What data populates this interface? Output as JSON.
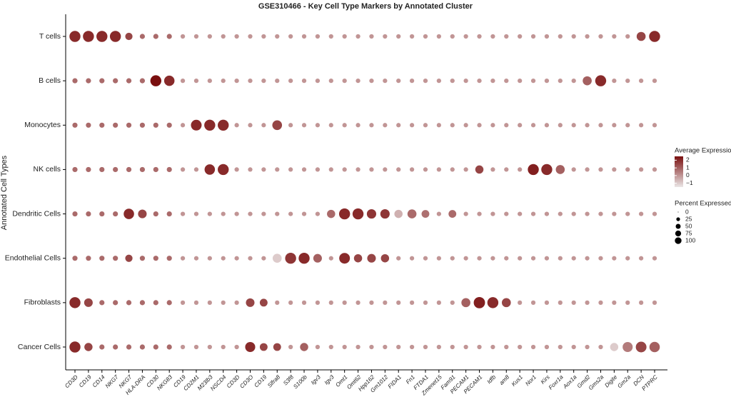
{
  "chart_data": {
    "type": "dot",
    "title": "GSE310466 - Key Cell Type Markers by Annotated Cluster",
    "y_label": "Annotated Cell Types",
    "x_categories": [
      "CD3D",
      "CD19",
      "CD14",
      "NKG7",
      "NKG7",
      "HLA-DRA",
      "CD30",
      "NKG83",
      "CD19",
      "CD2M1",
      "M23lb3",
      "NSCD4",
      "CD3D",
      "CD3O",
      "CD19",
      "Slfra8",
      "S3f8",
      "S100b",
      "Igv3",
      "Igv3",
      "Omt1",
      "Omt62",
      "Hpp162",
      "Gm1012",
      "FIDA1",
      "Fn1",
      "FTDA1",
      "Zmenet15",
      "Fam91",
      "PECAM1",
      "PECAM1",
      "Idfb",
      "am8",
      "Kus1",
      "Nor1",
      "Kirs",
      "Foxr1a",
      "Aox1a",
      "Gmd2",
      "Gms2a",
      "Digite",
      "Gm2a",
      "DCN",
      "PTPRC"
    ],
    "y_categories": [
      "T cells",
      "B cells",
      "Monocytes",
      "NK cells",
      "Dendritic Cells",
      "Endothelial Cells",
      "Fibroblasts",
      "Cancer Cells"
    ],
    "pct": [
      [
        80,
        80,
        80,
        80,
        30,
        12,
        12,
        12,
        8,
        8,
        8,
        8,
        8,
        8,
        8,
        8,
        8,
        8,
        8,
        8,
        8,
        8,
        8,
        8,
        8,
        8,
        8,
        8,
        8,
        8,
        8,
        8,
        8,
        8,
        8,
        8,
        8,
        8,
        8,
        8,
        8,
        8,
        50,
        80
      ],
      [
        12,
        12,
        12,
        12,
        12,
        12,
        80,
        70,
        8,
        8,
        8,
        8,
        8,
        8,
        8,
        8,
        8,
        8,
        8,
        8,
        8,
        8,
        8,
        8,
        8,
        8,
        8,
        8,
        8,
        8,
        8,
        8,
        8,
        8,
        8,
        8,
        8,
        8,
        50,
        80,
        8,
        8,
        8,
        8
      ],
      [
        12,
        12,
        12,
        12,
        12,
        12,
        12,
        12,
        8,
        75,
        80,
        80,
        8,
        8,
        8,
        60,
        8,
        8,
        8,
        8,
        8,
        8,
        8,
        8,
        8,
        8,
        8,
        8,
        8,
        8,
        8,
        8,
        8,
        8,
        8,
        8,
        8,
        8,
        8,
        8,
        8,
        8,
        8,
        8
      ],
      [
        12,
        12,
        12,
        12,
        12,
        12,
        12,
        12,
        8,
        8,
        70,
        80,
        8,
        8,
        8,
        8,
        8,
        8,
        8,
        8,
        8,
        8,
        8,
        8,
        8,
        8,
        8,
        8,
        8,
        8,
        40,
        8,
        8,
        8,
        80,
        80,
        50,
        8,
        8,
        8,
        8,
        8,
        8,
        8
      ],
      [
        12,
        12,
        12,
        12,
        70,
        45,
        12,
        12,
        8,
        8,
        8,
        8,
        8,
        8,
        8,
        8,
        8,
        8,
        8,
        40,
        80,
        80,
        55,
        55,
        40,
        50,
        35,
        8,
        35,
        8,
        8,
        8,
        8,
        8,
        8,
        8,
        8,
        8,
        8,
        8,
        8,
        8,
        8,
        8
      ],
      [
        12,
        12,
        12,
        12,
        30,
        12,
        12,
        12,
        8,
        8,
        8,
        8,
        8,
        8,
        8,
        50,
        80,
        80,
        45,
        8,
        75,
        40,
        45,
        40,
        8,
        8,
        8,
        8,
        8,
        8,
        8,
        8,
        8,
        8,
        8,
        8,
        8,
        8,
        8,
        8,
        8,
        8,
        8,
        8
      ],
      [
        80,
        45,
        12,
        12,
        12,
        12,
        12,
        12,
        8,
        8,
        8,
        8,
        8,
        45,
        35,
        8,
        8,
        8,
        8,
        8,
        8,
        8,
        8,
        8,
        8,
        8,
        8,
        8,
        8,
        50,
        85,
        80,
        50,
        8,
        8,
        8,
        8,
        8,
        8,
        8,
        8,
        8,
        8,
        8
      ],
      [
        80,
        40,
        12,
        12,
        12,
        12,
        12,
        12,
        8,
        8,
        8,
        8,
        8,
        65,
        35,
        35,
        8,
        40,
        8,
        8,
        8,
        8,
        8,
        8,
        8,
        8,
        8,
        8,
        8,
        8,
        8,
        8,
        8,
        8,
        8,
        8,
        8,
        8,
        8,
        8,
        40,
        65,
        75,
        70
      ]
    ],
    "expr": [
      [
        2,
        2,
        2,
        2,
        1.5,
        0.8,
        0.8,
        0.8,
        0,
        0,
        0,
        0,
        0,
        0,
        0,
        0,
        0,
        0,
        0,
        0,
        0,
        0,
        0,
        0,
        0,
        0,
        0,
        0,
        0,
        0,
        0,
        0,
        0,
        0,
        0,
        0,
        0,
        0,
        0,
        0,
        0,
        0,
        1.5,
        2
      ],
      [
        0.8,
        0.8,
        0.8,
        0.8,
        0.8,
        0.8,
        2.5,
        2,
        0,
        0,
        0,
        0,
        0,
        0,
        0,
        0,
        0,
        0,
        0,
        0,
        0,
        0,
        0,
        0,
        0,
        0,
        0,
        0,
        0,
        0,
        0,
        0,
        0,
        0,
        0,
        0,
        0,
        0,
        1,
        2,
        0,
        0,
        0,
        0
      ],
      [
        0.8,
        0.8,
        0.8,
        0.8,
        0.8,
        0.8,
        0.8,
        0.8,
        0,
        2,
        2,
        2,
        0,
        0,
        0,
        1.5,
        0,
        0,
        0,
        0,
        0,
        0,
        0,
        0,
        0,
        0,
        0,
        0,
        0,
        0,
        0,
        0,
        0,
        0,
        0,
        0,
        0,
        0,
        0,
        0,
        0,
        0,
        0,
        0
      ],
      [
        0.8,
        0.8,
        0.8,
        0.8,
        0.8,
        0.8,
        0.8,
        0.8,
        0,
        0,
        2,
        2,
        0,
        0,
        0,
        0,
        0,
        0,
        0,
        0,
        0,
        0,
        0,
        0,
        0,
        0,
        0,
        0,
        0,
        0,
        1.5,
        0,
        0,
        0,
        2.2,
        2,
        1,
        0,
        0,
        0,
        0,
        0,
        0,
        0
      ],
      [
        0.8,
        0.8,
        0.8,
        0.8,
        2,
        1.5,
        0.8,
        0.8,
        0,
        0,
        0,
        0,
        0,
        0,
        0,
        0,
        0,
        0,
        0,
        0.8,
        2,
        2,
        1.8,
        1.8,
        -0.5,
        0.8,
        0.7,
        0,
        0.8,
        0,
        0,
        0,
        0,
        0,
        0,
        0,
        0,
        0,
        0,
        0,
        0,
        0,
        0,
        0
      ],
      [
        0.8,
        0.8,
        0.8,
        0.8,
        1.5,
        0.8,
        0.8,
        0.8,
        0,
        0,
        0,
        0,
        0,
        0,
        0,
        -1,
        1.8,
        2,
        1,
        0,
        2,
        1.5,
        1.5,
        1.5,
        0,
        0,
        0,
        0,
        0,
        0,
        0,
        0,
        0,
        0,
        0,
        0,
        0,
        0,
        0,
        0,
        0,
        0,
        0,
        0
      ],
      [
        2,
        1.5,
        0.8,
        0.8,
        0.8,
        0.8,
        0.8,
        0.8,
        0,
        0,
        0,
        0,
        0,
        1.5,
        1.5,
        0,
        0,
        0,
        0,
        0,
        0,
        0,
        0,
        0,
        0,
        0,
        0,
        0,
        0,
        1,
        2.2,
        2,
        1.5,
        0,
        0,
        0,
        0,
        0,
        0,
        0,
        0,
        0,
        0,
        0
      ],
      [
        2,
        1.5,
        0.8,
        0.8,
        0.8,
        0.8,
        0.8,
        0.8,
        0,
        0,
        0,
        0,
        0,
        2,
        1.5,
        1.5,
        0,
        1,
        0,
        0,
        0,
        0,
        0,
        0,
        0,
        0,
        0,
        0,
        0,
        0,
        0,
        0,
        0,
        0,
        0,
        0,
        0,
        0,
        0,
        0,
        -1,
        0.5,
        1.5,
        1
      ]
    ],
    "color_title": "Average Expression",
    "clim": [
      -1.5,
      2.5
    ],
    "cticks": [
      {
        "value": 2,
        "label": "2"
      },
      {
        "value": 1,
        "label": "1"
      },
      {
        "value": 0,
        "label": "0"
      },
      {
        "value": -1,
        "label": "−1"
      }
    ],
    "color_low": "#ebe6e6",
    "color_high": "#7a0f0f",
    "size_title": "Percent Expressed",
    "size_lim": [
      0,
      100
    ],
    "size_ticks": [
      0,
      25,
      50,
      75,
      100
    ]
  }
}
